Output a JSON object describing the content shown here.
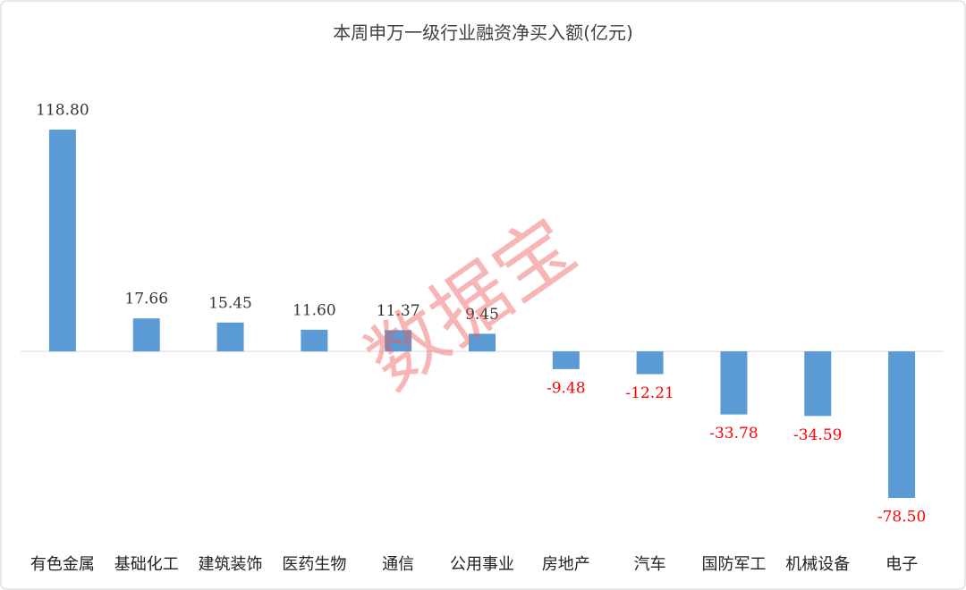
{
  "chart_data": {
    "type": "bar",
    "title": "本周申万一级行业融资净买入额(亿元)",
    "categories": [
      "有色金属",
      "基础化工",
      "建筑装饰",
      "医药生物",
      "通信",
      "公用事业",
      "房地产",
      "汽车",
      "国防军工",
      "机械设备",
      "电子"
    ],
    "values": [
      118.8,
      17.66,
      15.45,
      11.6,
      11.37,
      9.45,
      -9.48,
      -12.21,
      -33.78,
      -34.59,
      -78.5
    ],
    "value_labels": [
      "118.80",
      "17.66",
      "15.45",
      "11.60",
      "11.37",
      "9.45",
      "-9.48",
      "-12.21",
      "-33.78",
      "-34.59",
      "-78.50"
    ],
    "color": "#5b9bd5",
    "negative_label_color": "#ff0000",
    "positive_label_color": "#333333",
    "watermark": "数据宝"
  }
}
